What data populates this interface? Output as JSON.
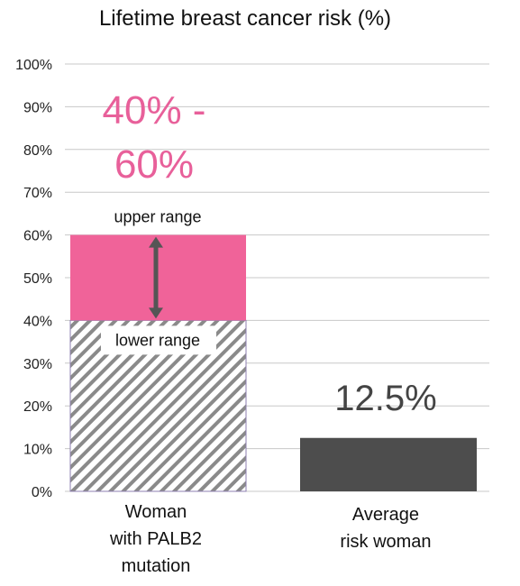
{
  "chart_data": {
    "type": "bar",
    "title": "Lifetime breast cancer risk (%)",
    "xlabel": "",
    "ylabel": "",
    "ylim": [
      0,
      100
    ],
    "yticks": [
      "0%",
      "10%",
      "20%",
      "30%",
      "40%",
      "50%",
      "60%",
      "70%",
      "80%",
      "90%",
      "100%"
    ],
    "grid": true,
    "categories": [
      [
        "Woman",
        "with PALB2",
        "mutation"
      ],
      [
        "Average",
        "risk woman"
      ]
    ],
    "bars": [
      {
        "category_index": 0,
        "type": "range",
        "lower": 40,
        "upper": 60,
        "range_text": [
          "40% -",
          "60%"
        ],
        "upper_label": "upper range",
        "lower_label": "lower range",
        "lower_style": "hatched",
        "range_color": "#f06399",
        "hatch_color": "#8a8a8a"
      },
      {
        "category_index": 1,
        "type": "value",
        "value": 12.5,
        "value_label": "12.5%",
        "color": "#4d4d4d"
      }
    ],
    "colors": {
      "grid": "#c8c8c8",
      "range_text": "#e8609a",
      "arrow": "#555555",
      "value_text": "#444444"
    }
  }
}
